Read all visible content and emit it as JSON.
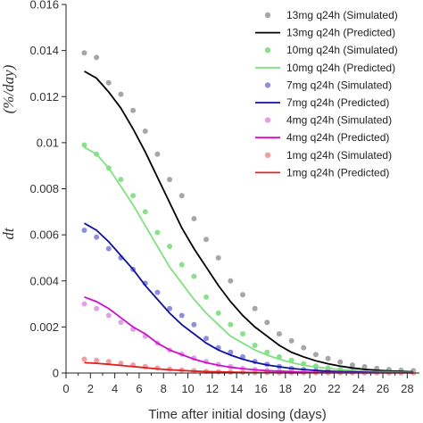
{
  "chart_data": {
    "type": "line",
    "title": "",
    "xlabel": "Time after initial dosing (days)",
    "ylabel_fragments": [
      "dt",
      "(%/day)"
    ],
    "xlim": [
      0,
      29
    ],
    "ylim": [
      0,
      0.016
    ],
    "x_ticks": [
      0,
      1,
      2,
      3,
      4,
      5,
      6,
      7,
      8,
      9,
      10,
      11,
      12,
      13,
      14,
      15,
      16,
      17,
      18,
      19,
      20,
      21,
      22,
      23,
      24,
      25,
      26,
      27,
      28
    ],
    "x_tick_labels": [
      "0",
      "2",
      "4",
      "6",
      "8",
      "10",
      "12",
      "14",
      "16",
      "18",
      "20",
      "22",
      "24",
      "26",
      "28"
    ],
    "y_tick_labels": [
      "0",
      "0.002",
      "0.004",
      "0.006",
      "0.008",
      "0.01",
      "0.012",
      "0.014",
      "0.016"
    ],
    "legend_position": "top-right",
    "grid": false,
    "series": [
      {
        "name": "13mg q24h (Simulated)",
        "kind": "scatter",
        "color": "#a6a6a6",
        "x": [
          1.5,
          2.5,
          3.5,
          4.5,
          5.5,
          6.5,
          7.5,
          8.5,
          9.5,
          10.5,
          11.5,
          12.5,
          13.5,
          14.5,
          15.5,
          16.5,
          17.5,
          18.5,
          19.5,
          20.5,
          21.5,
          22.5,
          23.5,
          24.5,
          25.5,
          26.5,
          27.5,
          28.5
        ],
        "y": [
          0.0139,
          0.0137,
          0.0126,
          0.0121,
          0.0114,
          0.0105,
          0.0095,
          0.0084,
          0.0077,
          0.0067,
          0.0058,
          0.005,
          0.004,
          0.0034,
          0.0028,
          0.0022,
          0.0017,
          0.0014,
          0.0011,
          0.0008,
          0.00063,
          0.00048,
          0.00035,
          0.00027,
          0.0002,
          0.00015,
          0.00012,
          0.0001
        ]
      },
      {
        "name": "13mg q24h (Predicted)",
        "kind": "line",
        "color": "#000000",
        "x": [
          1.5,
          2.5,
          3.5,
          4.5,
          5.5,
          6.5,
          7.5,
          8.5,
          9.5,
          10.5,
          11.5,
          12.5,
          13.5,
          14.5,
          15.5,
          16.5,
          17.5,
          18.5,
          19.5,
          20.5,
          21.5,
          22.5,
          23.5,
          24.5,
          25.5,
          26.5,
          27.5,
          28.5
        ],
        "y": [
          0.0131,
          0.0128,
          0.0122,
          0.0115,
          0.0106,
          0.0096,
          0.0085,
          0.0074,
          0.0063,
          0.0054,
          0.0046,
          0.0038,
          0.0031,
          0.0025,
          0.002,
          0.0016,
          0.0012,
          0.0009,
          0.0007,
          0.00053,
          0.0004,
          0.0003,
          0.00022,
          0.00016,
          0.00012,
          9e-05,
          7e-05,
          5e-05
        ]
      },
      {
        "name": "10mg q24h (Simulated)",
        "kind": "scatter",
        "color": "#8be08b",
        "x": [
          1.5,
          2.5,
          3.5,
          4.5,
          5.5,
          6.5,
          7.5,
          8.5,
          9.5,
          10.5,
          11.5,
          12.5,
          13.5,
          14.5,
          15.5,
          16.5,
          17.5,
          18.5,
          19.5,
          20.5,
          21.5,
          22.5,
          23.5,
          24.5,
          25.5,
          26.5,
          27.5,
          28.5
        ],
        "y": [
          0.0099,
          0.0095,
          0.0089,
          0.0084,
          0.0077,
          0.007,
          0.0061,
          0.0055,
          0.0047,
          0.0042,
          0.0033,
          0.0026,
          0.0021,
          0.0017,
          0.0012,
          0.0009,
          0.0007,
          0.00055,
          0.0004,
          0.0003,
          0.00022,
          0.00016,
          0.00012,
          9e-05,
          7e-05,
          5e-05,
          4e-05,
          3e-05
        ]
      },
      {
        "name": "10mg q24h (Predicted)",
        "kind": "line",
        "color": "#80e080",
        "x": [
          1.5,
          2.5,
          3.5,
          4.5,
          5.5,
          6.5,
          7.5,
          8.5,
          9.5,
          10.5,
          11.5,
          12.5,
          13.5,
          14.5,
          15.5,
          16.5,
          17.5,
          18.5,
          19.5,
          20.5,
          21.5,
          22.5,
          23.5,
          24.5,
          25.5,
          26.5,
          27.5,
          28.5
        ],
        "y": [
          0.0098,
          0.0095,
          0.0089,
          0.0081,
          0.0073,
          0.0064,
          0.0055,
          0.0046,
          0.0039,
          0.0032,
          0.0026,
          0.0021,
          0.0016,
          0.0013,
          0.001,
          0.00078,
          0.0006,
          0.00045,
          0.00034,
          0.00026,
          0.0002,
          0.00015,
          0.00011,
          8e-05,
          6e-05,
          5e-05,
          4e-05,
          3e-05
        ]
      },
      {
        "name": "7mg q24h (Simulated)",
        "kind": "scatter",
        "color": "#8f8fe0",
        "x": [
          1.5,
          2.5,
          3.5,
          4.5,
          5.5,
          6.5,
          7.5,
          8.5,
          9.5,
          10.5,
          11.5,
          12.5,
          13.5,
          14.5,
          15.5,
          16.5,
          17.5,
          18.5,
          19.5,
          20.5,
          21.5,
          22.5,
          23.5,
          24.5,
          25.5,
          26.5,
          27.5,
          28.5
        ],
        "y": [
          0.0062,
          0.0059,
          0.0054,
          0.005,
          0.0045,
          0.0039,
          0.0035,
          0.0028,
          0.0025,
          0.0021,
          0.0015,
          0.0011,
          0.0009,
          0.0007,
          0.0005,
          0.00038,
          0.00028,
          0.0002,
          0.00015,
          0.00011,
          8e-05,
          6e-05,
          5e-05,
          4e-05,
          3e-05,
          2e-05,
          2e-05,
          1e-05
        ]
      },
      {
        "name": "7mg q24h (Predicted)",
        "kind": "line",
        "color": "#1010a0",
        "x": [
          1.5,
          2.5,
          3.5,
          4.5,
          5.5,
          6.5,
          7.5,
          8.5,
          9.5,
          10.5,
          11.5,
          12.5,
          13.5,
          14.5,
          15.5,
          16.5,
          17.5,
          18.5,
          19.5,
          20.5,
          21.5,
          22.5,
          23.5,
          24.5,
          25.5,
          26.5,
          27.5,
          28.5
        ],
        "y": [
          0.0065,
          0.0062,
          0.0057,
          0.0051,
          0.0045,
          0.0038,
          0.0032,
          0.0026,
          0.0021,
          0.0017,
          0.0013,
          0.001,
          0.00078,
          0.0006,
          0.00046,
          0.00035,
          0.00027,
          0.0002,
          0.00015,
          0.00011,
          8e-05,
          6e-05,
          5e-05,
          4e-05,
          3e-05,
          2e-05,
          2e-05,
          1e-05
        ]
      },
      {
        "name": "4mg q24h (Simulated)",
        "kind": "scatter",
        "color": "#e4a0e4",
        "x": [
          1.5,
          2.5,
          3.5,
          4.5,
          5.5,
          6.5,
          7.5,
          8.5,
          9.5,
          10.5,
          11.5,
          12.5,
          13.5,
          14.5,
          15.5,
          16.5,
          17.5,
          18.5,
          19.5,
          20.5,
          21.5,
          22.5,
          23.5,
          24.5,
          25.5,
          26.5,
          27.5,
          28.5
        ],
        "y": [
          0.003,
          0.0028,
          0.0025,
          0.0022,
          0.0019,
          0.0016,
          0.0013,
          0.001,
          0.00082,
          0.00065,
          0.0005,
          0.00037,
          0.00028,
          0.0002,
          0.00015,
          0.00011,
          8e-05,
          6e-05,
          4e-05,
          3e-05,
          2e-05,
          2e-05,
          1e-05,
          1e-05,
          1e-05,
          1e-05,
          1e-05,
          1e-05
        ]
      },
      {
        "name": "4mg q24h (Predicted)",
        "kind": "line",
        "color": "#cc10cc",
        "x": [
          1.5,
          2.5,
          3.5,
          4.5,
          5.5,
          6.5,
          7.5,
          8.5,
          9.5,
          10.5,
          11.5,
          12.5,
          13.5,
          14.5,
          15.5,
          16.5,
          17.5,
          18.5,
          19.5,
          20.5,
          21.5,
          22.5,
          23.5,
          24.5,
          25.5,
          26.5,
          27.5,
          28.5
        ],
        "y": [
          0.0033,
          0.0031,
          0.0028,
          0.0024,
          0.002,
          0.0017,
          0.0013,
          0.001,
          0.0008,
          0.0006,
          0.00045,
          0.00034,
          0.00025,
          0.00019,
          0.00014,
          0.0001,
          8e-05,
          6e-05,
          4e-05,
          3e-05,
          2e-05,
          2e-05,
          1e-05,
          1e-05,
          1e-05,
          1e-05,
          1e-05,
          1e-05
        ]
      },
      {
        "name": "1mg q24h (Simulated)",
        "kind": "scatter",
        "color": "#f0a0a0",
        "x": [
          1.5,
          2.5,
          3.5,
          4.5,
          5.5,
          6.5,
          7.5,
          8.5,
          9.5,
          10.5,
          11.5,
          12.5,
          13.5,
          14.5,
          15.5,
          16.5,
          17.5,
          18.5,
          19.5,
          20.5,
          21.5,
          22.5,
          23.5,
          24.5,
          25.5,
          26.5,
          27.5,
          28.5
        ],
        "y": [
          0.0006,
          0.00055,
          0.0005,
          0.00042,
          0.00035,
          0.00028,
          0.00022,
          0.00017,
          0.00013,
          0.0001,
          7e-05,
          5e-05,
          4e-05,
          3e-05,
          2e-05,
          2e-05,
          1e-05,
          1e-05,
          1e-05,
          1e-05,
          1e-05,
          1e-05,
          1e-05,
          1e-05,
          1e-05,
          1e-05,
          1e-05,
          1e-05
        ]
      },
      {
        "name": "1mg q24h (Predicted)",
        "kind": "line",
        "color": "#e02020",
        "x": [
          1.5,
          2.5,
          3.5,
          4.5,
          5.5,
          6.5,
          7.5,
          8.5,
          9.5,
          10.5,
          11.5,
          12.5,
          13.5,
          14.5,
          15.5,
          16.5,
          17.5,
          18.5,
          19.5,
          20.5,
          21.5,
          22.5,
          23.5,
          24.5,
          25.5,
          26.5,
          27.5,
          28.5
        ],
        "y": [
          0.00045,
          0.00042,
          0.00038,
          0.00033,
          0.00028,
          0.00023,
          0.00018,
          0.00014,
          0.00011,
          8e-05,
          6e-05,
          5e-05,
          4e-05,
          3e-05,
          2e-05,
          2e-05,
          1e-05,
          1e-05,
          1e-05,
          1e-05,
          1e-05,
          1e-05,
          1e-05,
          1e-05,
          1e-05,
          1e-05,
          1e-05,
          1e-05
        ]
      }
    ]
  }
}
